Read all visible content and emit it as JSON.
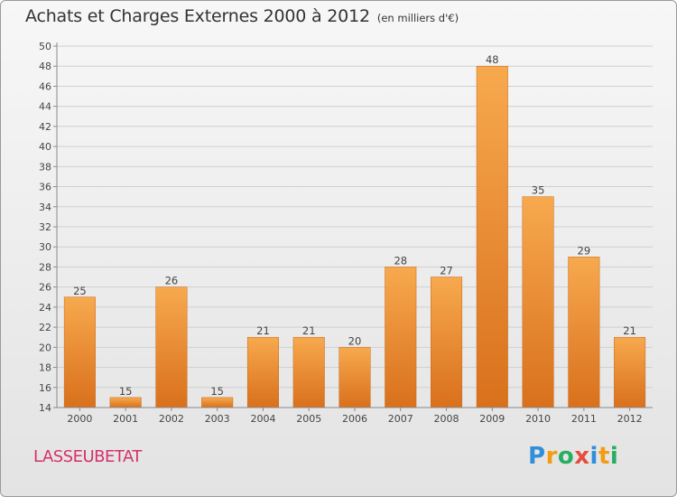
{
  "title": "Achats et Charges Externes 2000 à 2012",
  "unit_note": "(en milliers d'€)",
  "commune": "LASSEUBETAT",
  "logo": {
    "text": "Proxiti",
    "letters": [
      "P",
      "r",
      "o",
      "x",
      "i",
      "t",
      "i"
    ],
    "colors": [
      "#2f8fd8",
      "#f39c12",
      "#27ae60",
      "#e74c3c",
      "#2f8fd8",
      "#f39c12",
      "#27ae60"
    ]
  },
  "colors": {
    "bar_top": "#f7a94e",
    "bar_bottom": "#d9701c",
    "axis": "#8a8a8a",
    "grid": "#d0d0d0",
    "commune": "#d6306b"
  },
  "chart_data": {
    "type": "bar",
    "title": "Achats et Charges Externes 2000 à 2012",
    "subtitle": "(en milliers d'€)",
    "xlabel": "",
    "ylabel": "",
    "ylim": [
      14,
      50
    ],
    "ytick_step": 2,
    "grid": true,
    "categories": [
      "2000",
      "2001",
      "2002",
      "2003",
      "2004",
      "2005",
      "2006",
      "2007",
      "2008",
      "2009",
      "2010",
      "2011",
      "2012"
    ],
    "values": [
      25,
      15,
      26,
      15,
      21,
      21,
      20,
      28,
      27,
      48,
      35,
      29,
      21
    ]
  }
}
